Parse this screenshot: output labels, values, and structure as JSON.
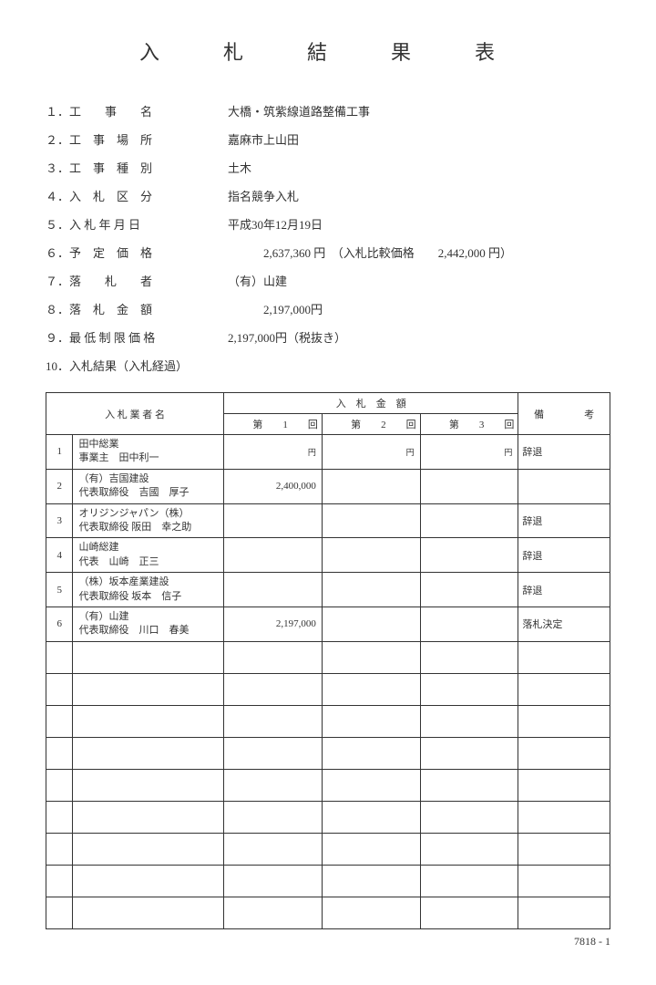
{
  "title": "入　札　結　果　表",
  "info": [
    {
      "num": "１．",
      "label": "工　　事　　名",
      "value": "大橋・筑紫線道路整備工事"
    },
    {
      "num": "２．",
      "label": "工　事　場　所",
      "value": "嘉麻市上山田"
    },
    {
      "num": "３．",
      "label": "工　事　種　別",
      "value": "土木"
    },
    {
      "num": "４．",
      "label": "入　札　区　分",
      "value": "指名競争入札"
    },
    {
      "num": "５．",
      "label": "入 札 年 月 日",
      "value": "平成30年12月19日"
    },
    {
      "num": "６．",
      "label": "予　定　価　格",
      "value": "　　　2,637,360 円　（入札比較価格　　2,442,000 円）"
    },
    {
      "num": "７．",
      "label": "落　　札　　者",
      "value": "（有）山建"
    },
    {
      "num": "８．",
      "label": "落　札　金　額",
      "value": "　　　2,197,000円"
    },
    {
      "num": "９．",
      "label": "最 低 制 限 価 格",
      "value": "2,197,000円（税抜き）"
    },
    {
      "num": "10．",
      "label": "入札結果（入札経過）",
      "value": ""
    }
  ],
  "table": {
    "header_name": "入 札 業 者 名",
    "header_bid_amount": "入　札　金　額",
    "header_round1": "第　　1　　回",
    "header_round2": "第　　2　　回",
    "header_round3": "第　　3　　回",
    "header_remark": "備　　　　考",
    "yen_label": "円",
    "rows": [
      {
        "num": "1",
        "name1": "田中総業",
        "name2": "事業主　田中利一",
        "bid1": "",
        "bid2": "",
        "bid3": "",
        "remark": "辞退"
      },
      {
        "num": "2",
        "name1": "（有）吉国建設",
        "name2": "代表取締役　吉國　厚子",
        "bid1": "2,400,000",
        "bid2": "",
        "bid3": "",
        "remark": ""
      },
      {
        "num": "3",
        "name1": "オリジンジャパン（株）",
        "name2": "代表取締役 阪田　幸之助",
        "bid1": "",
        "bid2": "",
        "bid3": "",
        "remark": "辞退"
      },
      {
        "num": "4",
        "name1": "山崎総建",
        "name2": "代表　山崎　正三",
        "bid1": "",
        "bid2": "",
        "bid3": "",
        "remark": "辞退"
      },
      {
        "num": "5",
        "name1": "（株）坂本産業建設",
        "name2": "代表取締役 坂本　信子",
        "bid1": "",
        "bid2": "",
        "bid3": "",
        "remark": "辞退"
      },
      {
        "num": "6",
        "name1": "（有）山建",
        "name2": "代表取締役　川口　春美",
        "bid1": "2,197,000",
        "bid2": "",
        "bid3": "",
        "remark": "落札決定"
      }
    ],
    "empty_rows": 9
  },
  "footer": "7818 - 1"
}
